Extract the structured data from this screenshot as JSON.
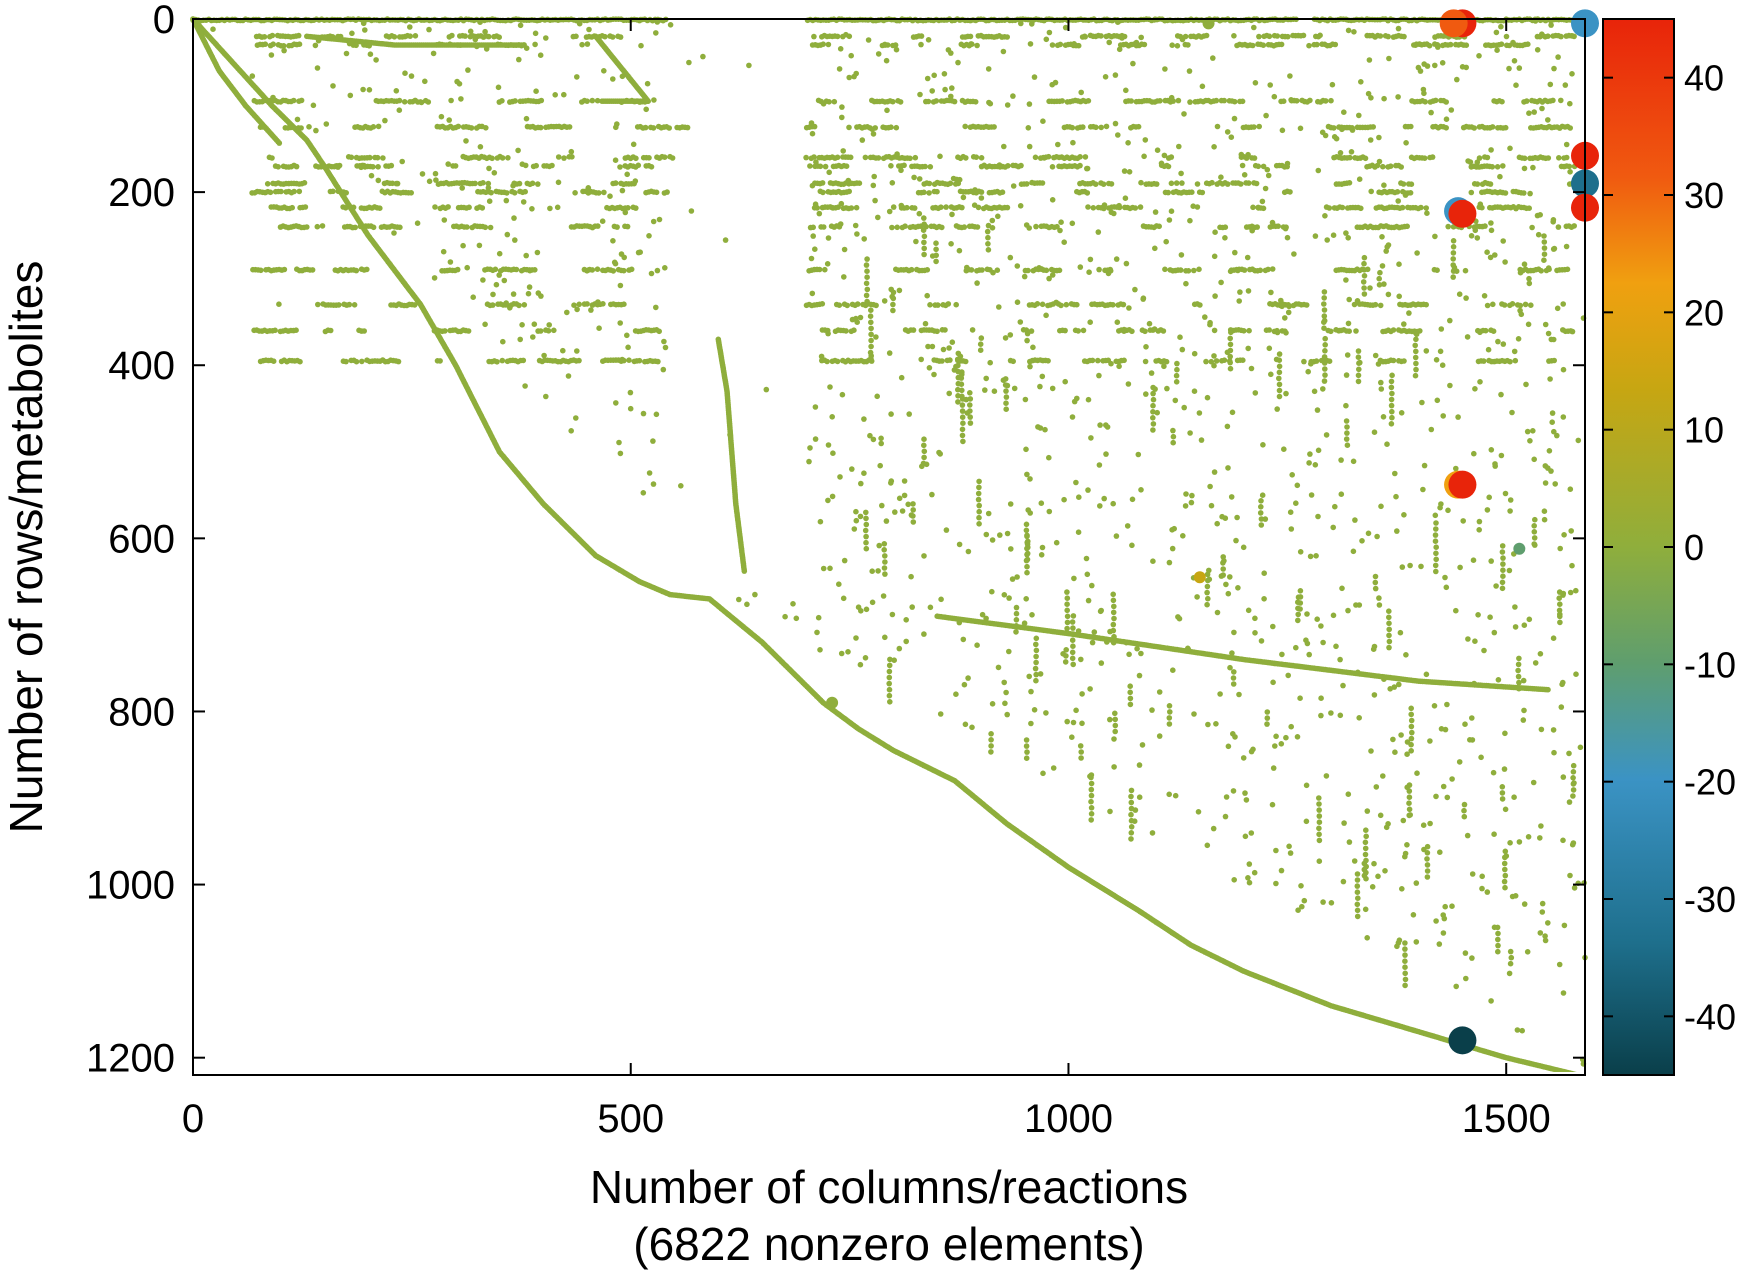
{
  "chart_data": {
    "type": "scatter",
    "title": "",
    "xlabel": "Number of columns/reactions",
    "xlabel_line2": "(6822 nonzero elements)",
    "ylabel": "Number of rows/metabolites",
    "xlim": [
      0,
      1590
    ],
    "ylim": [
      1220,
      0
    ],
    "y_inverted": true,
    "grid": false,
    "x_ticks": [
      0,
      500,
      1000,
      1500
    ],
    "y_ticks": [
      0,
      200,
      400,
      600,
      800,
      1000,
      1200
    ],
    "colorbar": {
      "range": [
        -45,
        45
      ],
      "ticks": [
        40,
        30,
        20,
        10,
        0,
        -10,
        -20,
        -30,
        -40
      ],
      "colormap": [
        "#0a3f4a",
        "#1e6f8c",
        "#3b93c4",
        "#5f9e6e",
        "#8fae3c",
        "#c7a612",
        "#f0a010",
        "#f05a10",
        "#e8240a"
      ]
    },
    "nonzero_count": 6822,
    "marker_color_small": "#8fae3c",
    "diagonal_segments": [
      [
        [
          0,
          0
        ],
        [
          90,
          100
        ],
        [
          130,
          140
        ],
        [
          150,
          170
        ],
        [
          200,
          250
        ],
        [
          260,
          330
        ],
        [
          300,
          400
        ],
        [
          350,
          500
        ],
        [
          400,
          560
        ],
        [
          460,
          620
        ],
        [
          510,
          650
        ],
        [
          545,
          665
        ],
        [
          590,
          670
        ],
        [
          650,
          720
        ],
        [
          720,
          790
        ],
        [
          760,
          820
        ],
        [
          800,
          845
        ],
        [
          870,
          880
        ],
        [
          930,
          930
        ],
        [
          1000,
          980
        ],
        [
          1080,
          1030
        ],
        [
          1140,
          1070
        ],
        [
          1200,
          1100
        ],
        [
          1300,
          1140
        ],
        [
          1400,
          1170
        ],
        [
          1500,
          1200
        ],
        [
          1590,
          1222
        ]
      ],
      [
        [
          0,
          0
        ],
        [
          30,
          60
        ],
        [
          60,
          100
        ],
        [
          100,
          145
        ]
      ],
      [
        [
          130,
          20
        ],
        [
          230,
          30
        ],
        [
          380,
          30
        ]
      ],
      [
        [
          460,
          20
        ],
        [
          520,
          95
        ],
        [
          465,
          95
        ]
      ],
      [
        [
          600,
          370
        ],
        [
          610,
          430
        ],
        [
          620,
          560
        ],
        [
          630,
          640
        ]
      ],
      [
        [
          850,
          690
        ],
        [
          1000,
          710
        ],
        [
          1200,
          740
        ],
        [
          1400,
          765
        ],
        [
          1550,
          775
        ]
      ]
    ],
    "large_points": [
      {
        "x": 1450,
        "y": 5,
        "v": 42
      },
      {
        "x": 1440,
        "y": 5,
        "v": 30
      },
      {
        "x": 1590,
        "y": 5,
        "v": -22
      },
      {
        "x": 1590,
        "y": 158,
        "v": 40
      },
      {
        "x": 1590,
        "y": 190,
        "v": -30
      },
      {
        "x": 1590,
        "y": 218,
        "v": 40
      },
      {
        "x": 1445,
        "y": 222,
        "v": -18
      },
      {
        "x": 1450,
        "y": 225,
        "v": 42
      },
      {
        "x": 1445,
        "y": 538,
        "v": 25
      },
      {
        "x": 1450,
        "y": 538,
        "v": 42
      },
      {
        "x": 1450,
        "y": 1180,
        "v": -42
      }
    ],
    "medium_points": [
      {
        "x": 1150,
        "y": 645,
        "v": 12
      },
      {
        "x": 1515,
        "y": 612,
        "v": -8
      },
      {
        "x": 1160,
        "y": 5,
        "v": 5
      },
      {
        "x": 730,
        "y": 790,
        "v": 2
      }
    ]
  }
}
